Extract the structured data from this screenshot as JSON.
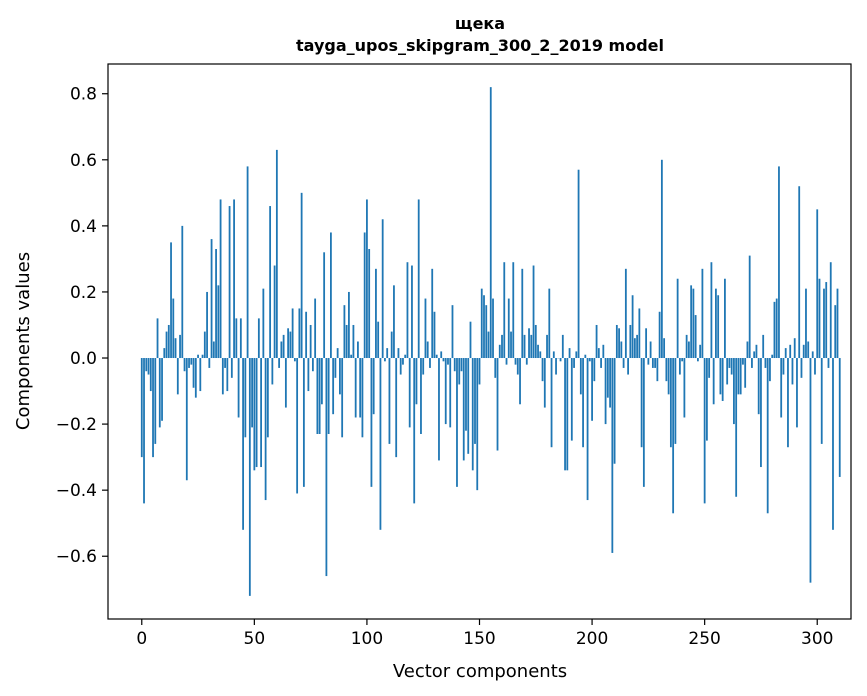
{
  "chart_data": {
    "type": "bar",
    "title": "щека",
    "subtitle": "tayga_upos_skipgram_300_2_2019 model",
    "xlabel": "Vector components",
    "ylabel": "Components values",
    "xlim": [
      -15,
      315
    ],
    "ylim": [
      -0.79,
      0.89
    ],
    "xticks": [
      0,
      50,
      100,
      150,
      200,
      250,
      300
    ],
    "yticks": [
      -0.6,
      -0.4,
      -0.2,
      0.0,
      0.2,
      0.4,
      0.6,
      0.8
    ],
    "xtick_labels": [
      "0",
      "50",
      "100",
      "150",
      "200",
      "250",
      "300"
    ],
    "ytick_labels": [
      "−0.6",
      "−0.4",
      "−0.2",
      "0.0",
      "0.2",
      "0.4",
      "0.6",
      "0.8"
    ],
    "bar_color": "#1f77b4",
    "values": [
      -0.3,
      -0.44,
      -0.04,
      -0.05,
      -0.1,
      -0.3,
      -0.26,
      0.12,
      -0.21,
      -0.19,
      0.03,
      0.08,
      0.1,
      0.35,
      0.18,
      0.06,
      -0.11,
      0.07,
      0.4,
      -0.04,
      -0.37,
      -0.03,
      -0.02,
      -0.09,
      -0.12,
      0.01,
      -0.1,
      0.01,
      0.08,
      0.2,
      -0.03,
      0.36,
      0.05,
      0.33,
      0.22,
      0.48,
      -0.11,
      -0.03,
      -0.1,
      0.46,
      -0.06,
      0.48,
      0.12,
      -0.18,
      0.12,
      -0.52,
      -0.24,
      0.58,
      -0.72,
      -0.21,
      -0.34,
      -0.33,
      0.12,
      -0.33,
      0.21,
      -0.43,
      -0.24,
      0.46,
      -0.08,
      0.28,
      0.63,
      -0.03,
      0.05,
      0.07,
      -0.15,
      0.09,
      0.08,
      0.15,
      -0.01,
      -0.41,
      0.15,
      0.5,
      -0.39,
      0.14,
      -0.1,
      0.1,
      -0.04,
      0.18,
      -0.23,
      -0.23,
      -0.14,
      0.32,
      -0.66,
      -0.23,
      0.38,
      -0.17,
      -0.06,
      0.03,
      -0.11,
      -0.24,
      0.16,
      0.1,
      0.2,
      0.01,
      0.1,
      -0.18,
      0.05,
      -0.18,
      -0.24,
      0.38,
      0.48,
      0.33,
      -0.39,
      -0.17,
      0.27,
      0.11,
      -0.52,
      0.42,
      -0.01,
      0.03,
      -0.26,
      0.08,
      0.22,
      -0.3,
      0.03,
      -0.05,
      -0.02,
      0.01,
      0.29,
      -0.21,
      0.28,
      -0.44,
      -0.14,
      0.48,
      -0.23,
      -0.05,
      0.18,
      0.05,
      -0.03,
      0.27,
      0.14,
      0.01,
      -0.31,
      0.02,
      -0.01,
      -0.2,
      -0.02,
      -0.21,
      0.16,
      -0.04,
      -0.39,
      -0.08,
      -0.04,
      -0.31,
      -0.22,
      -0.29,
      0.11,
      -0.34,
      -0.26,
      -0.4,
      -0.08,
      0.21,
      0.19,
      0.16,
      0.08,
      0.82,
      0.18,
      -0.06,
      -0.28,
      0.04,
      0.07,
      0.29,
      -0.02,
      0.18,
      0.08,
      0.29,
      -0.02,
      -0.05,
      -0.14,
      0.27,
      0.07,
      -0.02,
      0.09,
      0.07,
      0.28,
      0.1,
      0.04,
      0.02,
      -0.07,
      -0.15,
      0.07,
      0.21,
      -0.27,
      0.02,
      -0.05,
      0.0,
      -0.01,
      0.07,
      -0.34,
      -0.34,
      0.03,
      -0.25,
      -0.03,
      0.02,
      0.57,
      -0.11,
      -0.27,
      0.01,
      -0.43,
      -0.01,
      -0.19,
      -0.07,
      0.1,
      0.03,
      -0.03,
      0.04,
      -0.2,
      -0.12,
      -0.15,
      -0.59,
      -0.32,
      0.1,
      0.09,
      0.05,
      -0.03,
      0.27,
      -0.05,
      0.1,
      0.19,
      0.06,
      0.07,
      0.15,
      -0.27,
      -0.39,
      0.09,
      -0.02,
      0.05,
      -0.03,
      -0.03,
      -0.07,
      0.14,
      0.6,
      0.06,
      -0.07,
      -0.11,
      -0.27,
      -0.47,
      -0.26,
      0.24,
      -0.05,
      -0.01,
      -0.18,
      0.07,
      0.05,
      0.22,
      0.21,
      0.13,
      -0.01,
      0.04,
      0.27,
      -0.44,
      -0.25,
      -0.06,
      0.29,
      -0.14,
      0.21,
      0.19,
      -0.11,
      -0.13,
      0.24,
      -0.08,
      -0.03,
      -0.05,
      -0.2,
      -0.42,
      -0.11,
      -0.11,
      -0.02,
      -0.09,
      0.05,
      0.31,
      -0.03,
      0.02,
      0.04,
      -0.17,
      -0.33,
      0.07,
      -0.03,
      -0.47,
      -0.07,
      0.01,
      0.17,
      0.18,
      0.58,
      -0.18,
      -0.05,
      0.03,
      -0.27,
      0.04,
      -0.08,
      0.06,
      -0.21,
      0.52,
      -0.06,
      0.04,
      0.21,
      0.05,
      -0.68,
      0.02,
      -0.05,
      0.45,
      0.24,
      -0.26,
      0.21,
      0.23,
      -0.03,
      0.29,
      -0.52,
      0.16,
      0.21,
      -0.36
    ]
  }
}
